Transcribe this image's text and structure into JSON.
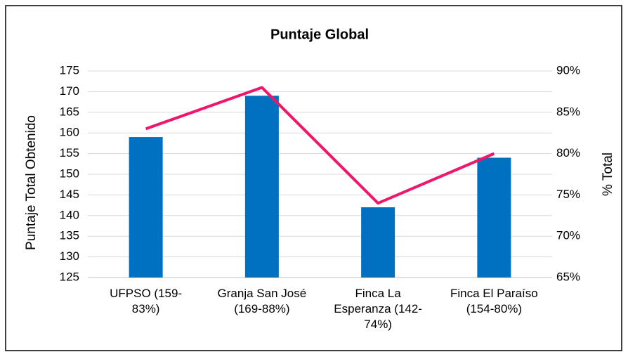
{
  "chart_data": {
    "type": "bar",
    "title": "Puntaje Global",
    "categories": [
      "UFPSO (159-83%)",
      "Granja San José (169-88%)",
      "Finca La Esperanza (142-74%)",
      "Finca El Paraíso (154-80%)"
    ],
    "series": [
      {
        "color": "#0070c0",
        "values": [
          159,
          169,
          142,
          154
        ]
      },
      {
        "color": "#f0166c",
        "values": [
          83,
          88,
          74,
          80
        ],
        "axis": "y2",
        "type": "line"
      }
    ],
    "ylabel": "Puntaje Total Obtenido",
    "y2label": "% Total",
    "ylim": [
      125,
      175
    ],
    "yticks": [
      125,
      130,
      135,
      140,
      145,
      150,
      155,
      160,
      165,
      170,
      175
    ],
    "y2lim": [
      65,
      90
    ],
    "y2ticks": [
      {
        "value": 65,
        "label": "65%"
      },
      {
        "value": 70,
        "label": "70%"
      },
      {
        "value": 75,
        "label": "75%"
      },
      {
        "value": 80,
        "label": "80%"
      },
      {
        "value": 85,
        "label": "85%"
      },
      {
        "value": 90,
        "label": "90%"
      }
    ],
    "grid": true
  }
}
